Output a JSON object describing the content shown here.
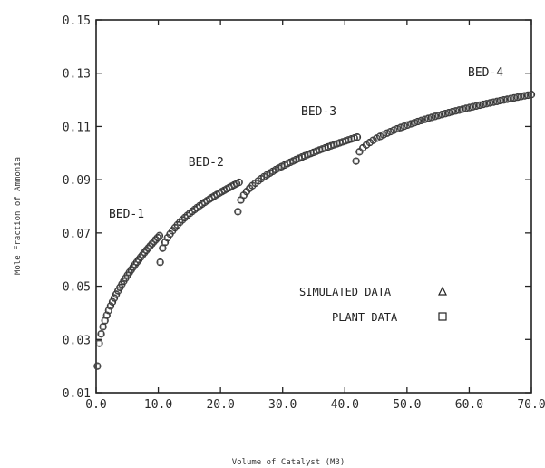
{
  "chart_data": {
    "type": "scatter",
    "xlabel": "Volume of Catalyst (M3)",
    "ylabel": "Mole Fraction of Ammonia",
    "xlim": [
      0,
      70
    ],
    "ylim": [
      0.01,
      0.15
    ],
    "x_ticks": [
      "0.0",
      "10.0",
      "20.0",
      "30.0",
      "40.0",
      "50.0",
      "60.0",
      "70.0"
    ],
    "y_ticks": [
      "0.01",
      "0.03",
      "0.05",
      "0.07",
      "0.09",
      "0.11",
      "0.13",
      "0.15"
    ],
    "legend": {
      "placement": "center-right",
      "entries": [
        {
          "label": "SIMULATED DATA",
          "marker": "triangle"
        },
        {
          "label": "PLANT DATA",
          "marker": "square"
        }
      ]
    },
    "series": [
      {
        "name": "BED-1",
        "x_start": 0.2,
        "x_end": 10.2,
        "y_start": 0.02,
        "y_end": 0.069,
        "points": 34
      },
      {
        "name": "BED-2",
        "x_start": 10.3,
        "x_end": 23.0,
        "y_start": 0.059,
        "y_end": 0.089,
        "points": 33
      },
      {
        "name": "BED-3",
        "x_start": 22.8,
        "x_end": 42.0,
        "y_start": 0.078,
        "y_end": 0.106,
        "points": 42
      },
      {
        "name": "BED-4",
        "x_start": 41.8,
        "x_end": 70.0,
        "y_start": 0.097,
        "y_end": 0.122,
        "points": 52
      }
    ]
  }
}
